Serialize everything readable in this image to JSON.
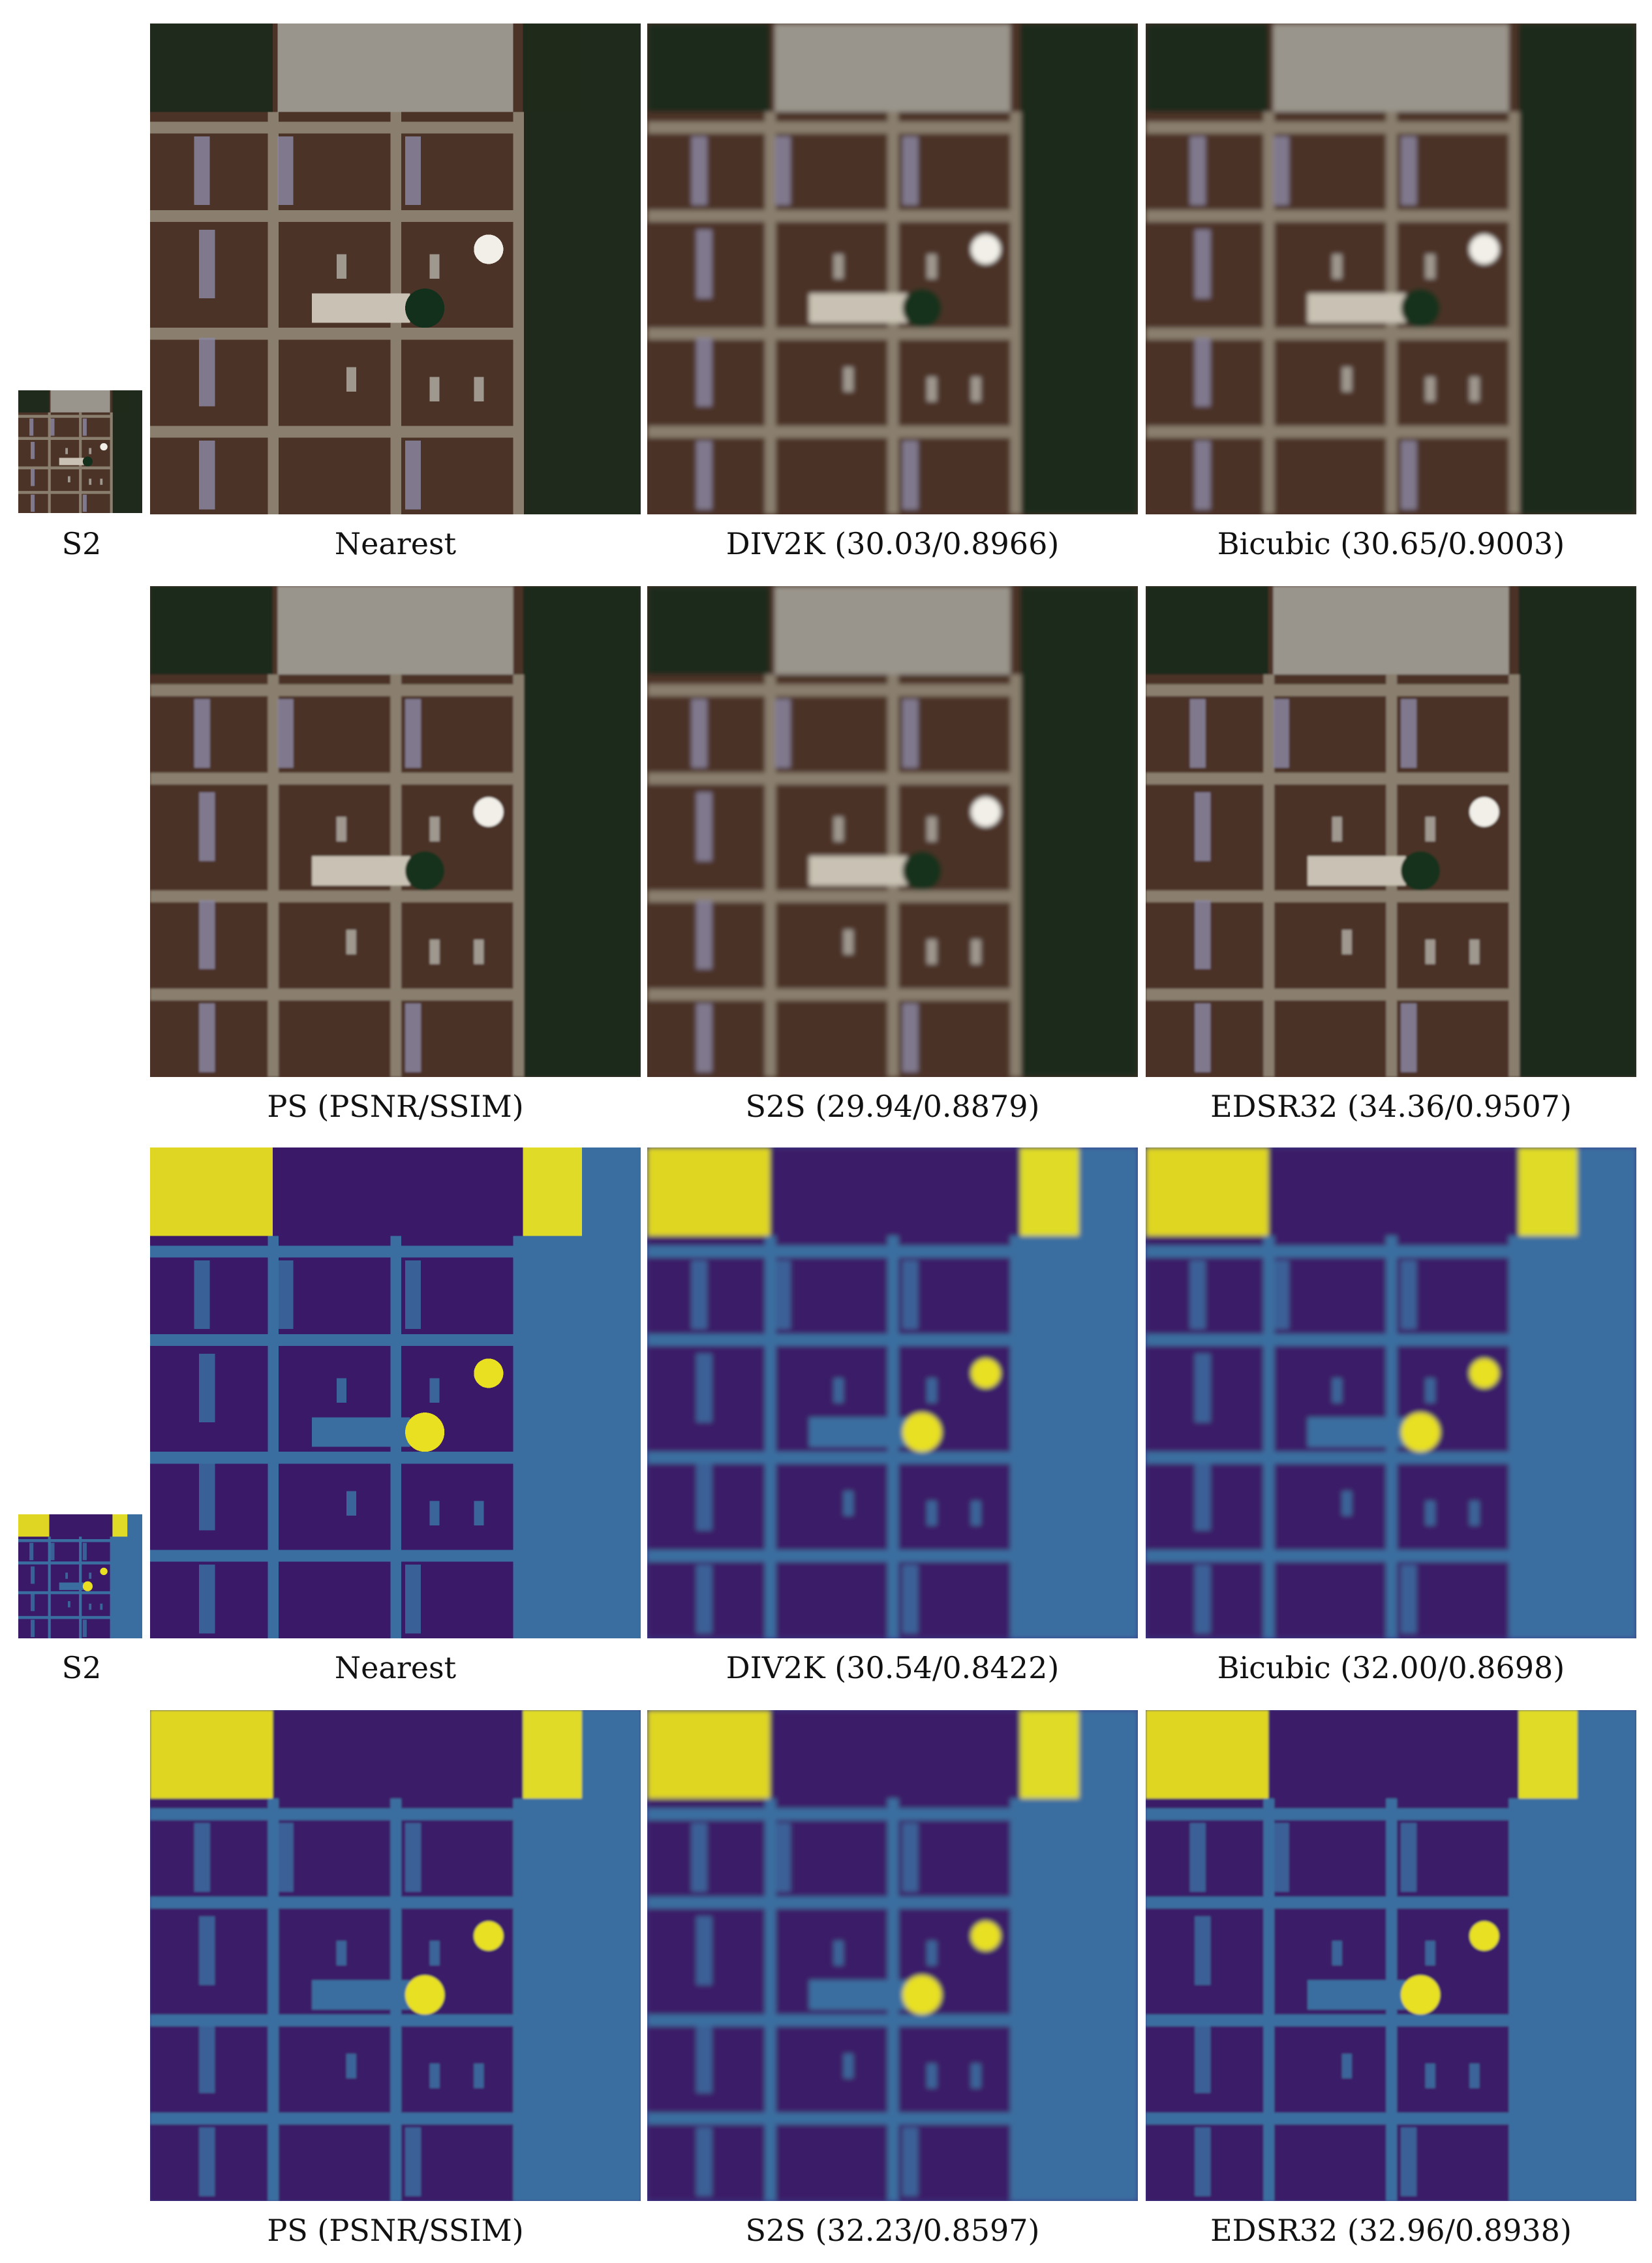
{
  "rows": [
    {
      "kind": "rgb",
      "thumb_label": "S2",
      "panels": [
        {
          "label": "Nearest",
          "style": "pixelated"
        },
        {
          "label": "DIV2K (30.03/0.8966)",
          "style": "smooth"
        },
        {
          "label": "Bicubic (30.65/0.9003)",
          "style": "smooth"
        }
      ]
    },
    {
      "kind": "rgb",
      "thumb_label": "",
      "panels": [
        {
          "label": "PS (PSNR/SSIM)",
          "style": "sharp"
        },
        {
          "label": "S2S (29.94/0.8879)",
          "style": "smooth"
        },
        {
          "label": "EDSR32 (34.36/0.9507)",
          "style": "sharp"
        }
      ]
    },
    {
      "kind": "ndvi",
      "thumb_label": "S2",
      "panels": [
        {
          "label": "Nearest",
          "style": "pixelated"
        },
        {
          "label": "DIV2K (30.54/0.8422)",
          "style": "smooth"
        },
        {
          "label": "Bicubic (32.00/0.8698)",
          "style": "smooth"
        }
      ]
    },
    {
      "kind": "ndvi",
      "thumb_label": "",
      "panels": [
        {
          "label": "PS (PSNR/SSIM)",
          "style": "sharp"
        },
        {
          "label": "S2S (32.23/0.8597)",
          "style": "smooth"
        },
        {
          "label": "EDSR32 (32.96/0.8938)",
          "style": "sharp"
        }
      ]
    }
  ],
  "colors": {
    "rgb_field": "#4b3328",
    "rgb_road": "#8a7f6e",
    "rgb_crop": "#1f2a1c",
    "rgb_roof": "#9a958c",
    "rgb_stripe": "#8a86a0",
    "ndvi_low": "#3a1a68",
    "ndvi_mid": "#3b6ea0",
    "ndvi_high": "#e8e020"
  }
}
